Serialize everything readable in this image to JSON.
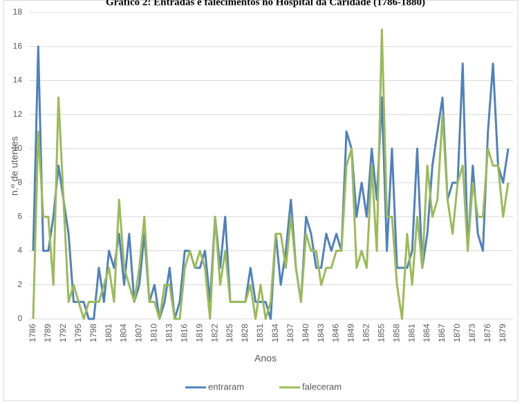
{
  "chart_data": {
    "type": "line",
    "title": "Gráfico 2: Entradas e falecimentos no Hospital da Caridade (1786-1880)",
    "y_label": "n.º de utentes",
    "x_label": "Anos",
    "categories": [
      "1786",
      null,
      null,
      "1789",
      null,
      null,
      "1792",
      null,
      null,
      "1795",
      null,
      null,
      "1798",
      null,
      null,
      "1801",
      null,
      null,
      "1804",
      null,
      null,
      "1807",
      null,
      null,
      "1810",
      null,
      null,
      "1813",
      null,
      null,
      "1816",
      null,
      null,
      "1819",
      null,
      null,
      "1822",
      null,
      null,
      "1825",
      null,
      null,
      "1828",
      null,
      null,
      "1831",
      null,
      null,
      "1834",
      null,
      null,
      "1837",
      null,
      null,
      "1840",
      null,
      null,
      "1843",
      null,
      null,
      "1846",
      null,
      null,
      "1849",
      null,
      null,
      "1852",
      null,
      null,
      "1855",
      null,
      null,
      "1858",
      null,
      null,
      "1861",
      null,
      null,
      "1864",
      null,
      null,
      "1867",
      null,
      null,
      "1870",
      null,
      null,
      "1873",
      null,
      null,
      "1876",
      null,
      null,
      "1879",
      null
    ],
    "series": [
      {
        "name": "entraram",
        "color": "#4f81bd",
        "values": [
          4,
          16,
          4,
          4,
          6,
          9,
          7,
          5,
          1,
          1,
          1,
          0,
          0,
          3,
          1,
          4,
          3,
          5,
          2,
          5,
          1,
          2,
          5,
          1,
          2,
          0,
          1,
          3,
          0,
          1,
          4,
          4,
          3,
          3,
          4,
          1,
          6,
          3,
          6,
          1,
          1,
          1,
          1,
          3,
          1,
          1,
          1,
          0,
          5,
          2,
          4,
          7,
          3,
          1,
          6,
          5,
          3,
          3,
          5,
          4,
          5,
          4,
          11,
          10,
          6,
          8,
          6,
          10,
          7,
          13,
          4,
          10,
          3,
          3,
          3,
          4,
          10,
          3,
          5,
          9,
          11,
          13,
          7,
          8,
          8,
          15,
          4,
          9,
          5,
          4,
          11,
          15,
          9,
          8,
          10
        ]
      },
      {
        "name": "faleceram",
        "color": "#9bbb59",
        "values": [
          0,
          11,
          6,
          6,
          2,
          13,
          7,
          1,
          2,
          1,
          0,
          1,
          1,
          1,
          2,
          3,
          1,
          7,
          3,
          2,
          1,
          3,
          6,
          1,
          1,
          0,
          2,
          2,
          0,
          0,
          3,
          4,
          3,
          4,
          3,
          0,
          6,
          2,
          4,
          1,
          1,
          1,
          1,
          2,
          0,
          2,
          0,
          1,
          5,
          5,
          3,
          6,
          3,
          1,
          5,
          4,
          4,
          2,
          3,
          3,
          4,
          4,
          9,
          10,
          3,
          4,
          3,
          9,
          4,
          17,
          6,
          6,
          2,
          0,
          5,
          2,
          6,
          3,
          9,
          6,
          7,
          12,
          7,
          5,
          8,
          9,
          4,
          8,
          6,
          6,
          10,
          9,
          9,
          6,
          8
        ]
      }
    ],
    "ylim": [
      0,
      18
    ],
    "yticks": [
      0,
      2,
      4,
      6,
      8,
      10,
      12,
      14,
      16,
      18
    ],
    "grid": true,
    "legend": "bottom"
  }
}
